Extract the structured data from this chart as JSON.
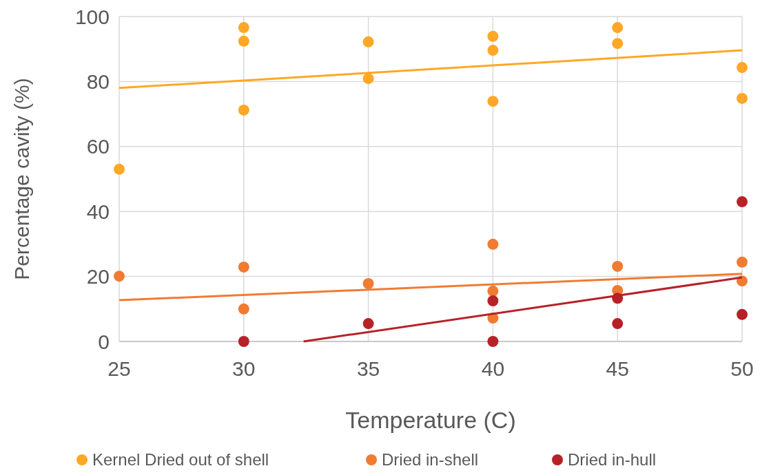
{
  "chart_data": {
    "type": "scatter",
    "xlabel": "Temperature (C)",
    "ylabel": "Percentage cavity (%)",
    "xlim": [
      25,
      50
    ],
    "xticks": [
      25,
      30,
      35,
      40,
      45,
      50
    ],
    "ylim": [
      0,
      100
    ],
    "yticks": [
      0,
      20,
      40,
      60,
      80,
      100
    ],
    "grid": true,
    "legend": "bottom",
    "marker": "circle",
    "series": [
      {
        "name": "Kernel Dried out of shell",
        "color": "#ffa726",
        "x": [
          25,
          30,
          30,
          30,
          35,
          35,
          40,
          40,
          40,
          45,
          45,
          50,
          50
        ],
        "values": [
          53,
          96.6,
          92.4,
          71.2,
          92.2,
          80.9,
          93.9,
          89.6,
          73.9,
          96.6,
          91.7,
          84.3,
          74.8
        ]
      },
      {
        "name": "Dried in-shell",
        "color": "#f07b32",
        "x": [
          25,
          30,
          30,
          35,
          40,
          40,
          40,
          45,
          45,
          50,
          50
        ],
        "values": [
          20.1,
          22.9,
          10,
          17.8,
          29.9,
          15.5,
          7.2,
          23.1,
          15.7,
          24.4,
          18.6
        ]
      },
      {
        "name": "Dried in-hull",
        "color": "#b72128",
        "x": [
          30,
          35,
          40,
          40,
          45,
          45,
          50,
          50
        ],
        "values": [
          0,
          5.5,
          12.5,
          0,
          13.3,
          5.5,
          43,
          8.3
        ]
      },
      {
        "type": "line",
        "marker": "none",
        "color": "#ffa726",
        "x": [
          25,
          50
        ],
        "values": [
          78,
          89.6
        ]
      },
      {
        "type": "line",
        "marker": "none",
        "color": "#f07b32",
        "x": [
          25,
          50
        ],
        "values": [
          12.7,
          20.8
        ]
      },
      {
        "type": "line",
        "marker": "none",
        "color": "#b72128",
        "x": [
          32.4,
          50
        ],
        "values": [
          0,
          19.7
        ]
      }
    ]
  }
}
